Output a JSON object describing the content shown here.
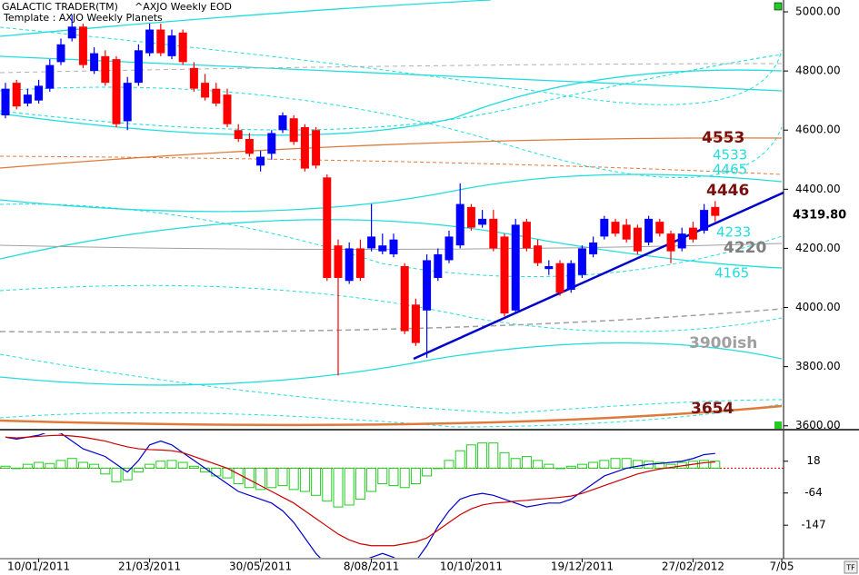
{
  "header": {
    "product": "GALACTIC TRADER(TM)",
    "symbol": "^AXJO Weekly EOD",
    "template": "Template : AXJO Weekly Planets"
  },
  "chart_data": {
    "type": "candlestick",
    "price_label": "4319.80",
    "open": [
      4650,
      4760,
      4690,
      4700,
      4740,
      4830,
      4910,
      4950,
      4800,
      4850,
      4840,
      4630,
      4760,
      4860,
      4940,
      4850,
      4930,
      4810,
      4760,
      4740,
      4720,
      4600,
      4570,
      4480,
      4520,
      4600,
      4640,
      4610,
      4600,
      4440,
      4210,
      4090,
      4200,
      4200,
      4190,
      4180,
      4140,
      4010,
      3990,
      4100,
      4160,
      4210,
      4340,
      4280,
      4300,
      4240,
      3990,
      4290,
      4210,
      4130,
      4150,
      4060,
      4110,
      4180,
      4240,
      4290,
      4280,
      4270,
      4220,
      4290,
      4250,
      4200,
      4270,
      4260,
      4340
    ],
    "high": [
      4760,
      4770,
      4740,
      4770,
      4840,
      4910,
      4990,
      4960,
      4880,
      4870,
      4850,
      4780,
      4890,
      4960,
      4960,
      4940,
      4940,
      4830,
      4790,
      4760,
      4740,
      4620,
      4590,
      4530,
      4600,
      4660,
      4650,
      4620,
      4610,
      4450,
      4230,
      4220,
      4230,
      4350,
      4250,
      4250,
      4150,
      4030,
      4180,
      4200,
      4260,
      4420,
      4350,
      4330,
      4330,
      4250,
      4300,
      4300,
      4230,
      4160,
      4160,
      4160,
      4210,
      4240,
      4310,
      4300,
      4300,
      4280,
      4310,
      4300,
      4260,
      4270,
      4290,
      4350,
      4360
    ],
    "low": [
      4640,
      4670,
      4680,
      4690,
      4730,
      4820,
      4900,
      4810,
      4790,
      4750,
      4610,
      4600,
      4750,
      4850,
      4850,
      4840,
      4820,
      4730,
      4700,
      4680,
      4610,
      4560,
      4510,
      4460,
      4500,
      4590,
      4550,
      4460,
      4470,
      4090,
      3770,
      4080,
      4090,
      4190,
      4180,
      4170,
      3910,
      3870,
      3830,
      4090,
      4150,
      4200,
      4260,
      4270,
      4190,
      3970,
      3980,
      4190,
      4140,
      4110,
      4040,
      4050,
      4100,
      4170,
      4230,
      4240,
      4220,
      4180,
      4210,
      4240,
      4150,
      4190,
      4220,
      4250,
      4290
    ],
    "close": [
      4740,
      4680,
      4720,
      4750,
      4820,
      4890,
      4950,
      4820,
      4860,
      4760,
      4620,
      4760,
      4870,
      4940,
      4860,
      4920,
      4830,
      4740,
      4710,
      4690,
      4620,
      4570,
      4520,
      4510,
      4590,
      4650,
      4560,
      4470,
      4480,
      4100,
      4100,
      4200,
      4100,
      4240,
      4210,
      4230,
      3920,
      3880,
      4160,
      4180,
      4240,
      4350,
      4270,
      4300,
      4200,
      3980,
      4280,
      4200,
      4150,
      4140,
      4050,
      4150,
      4200,
      4220,
      4300,
      4250,
      4230,
      4190,
      4300,
      4250,
      4190,
      4250,
      4230,
      4330,
      4310
    ],
    "x_labels": [
      {
        "week": 3,
        "label": "10/01/2011"
      },
      {
        "week": 13,
        "label": "21/03/2011"
      },
      {
        "week": 23,
        "label": "30/05/2011"
      },
      {
        "week": 33,
        "label": "8/08/2011"
      },
      {
        "week": 42,
        "label": "10/10/2011"
      },
      {
        "week": 52,
        "label": "19/12/2011"
      },
      {
        "week": 62,
        "label": "27/02/2012"
      },
      {
        "week": 70,
        "label": "7/05"
      }
    ],
    "ylim": [
      3590,
      5040
    ],
    "yticks": [
      {
        "value": 5000,
        "label": "5000.00"
      },
      {
        "value": 4800,
        "label": "4800.00"
      },
      {
        "value": 4600,
        "label": "4600.00"
      },
      {
        "value": 4400,
        "label": "4400.00"
      },
      {
        "value": 4200,
        "label": "4200.00"
      },
      {
        "value": 4000,
        "label": "4000.00"
      },
      {
        "value": 3800,
        "label": "3800.00"
      },
      {
        "value": 3600,
        "label": "3600.00"
      }
    ],
    "up_color": "#0000ff",
    "down_color": "#ff0000",
    "annotations": [
      {
        "text": "4553",
        "color": "#7b0f0f"
      },
      {
        "text": "4533",
        "color": "#22dddd"
      },
      {
        "text": "4465",
        "color": "#22dddd"
      },
      {
        "text": "4446",
        "color": "#7b0f0f"
      },
      {
        "text": "4233",
        "color": "#22dddd"
      },
      {
        "text": "4220",
        "color": "#808080"
      },
      {
        "text": "4165",
        "color": "#22dddd"
      },
      {
        "text": "3900ish",
        "color": "#a0a0a0"
      },
      {
        "text": "3654",
        "color": "#7b0f0f"
      }
    ],
    "indicator": {
      "ylim": [
        -231,
        90
      ],
      "yticks": [
        18,
        -64,
        -147
      ],
      "histogram": {
        "color": "#22cc22",
        "values": [
          5,
          0,
          10,
          15,
          12,
          20,
          25,
          15,
          10,
          -15,
          -35,
          -30,
          -10,
          10,
          18,
          20,
          15,
          5,
          -10,
          -20,
          -25,
          -40,
          -50,
          -55,
          -50,
          -45,
          -55,
          -60,
          -70,
          -85,
          -100,
          -95,
          -80,
          -60,
          -40,
          -45,
          -50,
          -40,
          -20,
          0,
          20,
          45,
          60,
          65,
          65,
          40,
          25,
          30,
          20,
          10,
          0,
          5,
          10,
          15,
          20,
          25,
          25,
          20,
          18,
          15,
          10,
          15,
          18,
          20,
          18
        ]
      },
      "series": [
        {
          "color": "#0000cc",
          "values": [
            80,
            75,
            80,
            85,
            95,
            90,
            70,
            50,
            40,
            30,
            10,
            -10,
            20,
            60,
            70,
            60,
            40,
            20,
            0,
            -20,
            -40,
            -60,
            -70,
            -80,
            -90,
            -110,
            -140,
            -180,
            -220,
            -250,
            -260,
            -250,
            -240,
            -230,
            -220,
            -230,
            -250,
            -240,
            -200,
            -150,
            -110,
            -80,
            -70,
            -65,
            -70,
            -80,
            -90,
            -100,
            -95,
            -90,
            -90,
            -80,
            -60,
            -40,
            -20,
            -10,
            0,
            5,
            10,
            12,
            15,
            18,
            25,
            35,
            38
          ]
        },
        {
          "color": "#cc0000",
          "values": [
            80,
            78,
            80,
            82,
            84,
            85,
            83,
            80,
            75,
            70,
            62,
            55,
            50,
            48,
            47,
            45,
            40,
            30,
            20,
            10,
            0,
            -15,
            -30,
            -45,
            -60,
            -75,
            -90,
            -110,
            -130,
            -150,
            -170,
            -185,
            -195,
            -200,
            -200,
            -200,
            -195,
            -190,
            -180,
            -160,
            -140,
            -120,
            -105,
            -95,
            -90,
            -88,
            -85,
            -83,
            -80,
            -78,
            -75,
            -72,
            -65,
            -55,
            -45,
            -35,
            -25,
            -15,
            -8,
            -2,
            2,
            6,
            10,
            14,
            16
          ]
        }
      ]
    }
  },
  "corner_button": "TF"
}
